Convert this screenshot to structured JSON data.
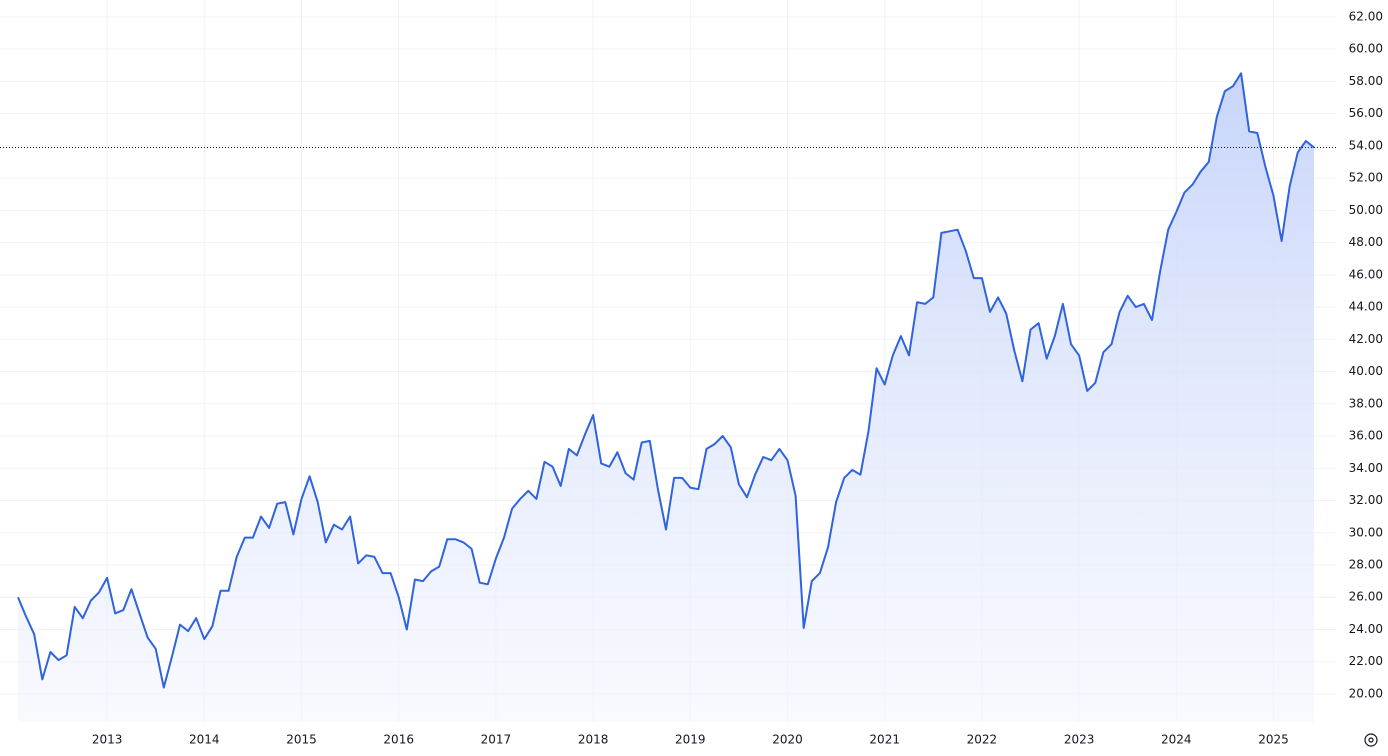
{
  "chart_data": {
    "type": "line",
    "area": true,
    "grid": true,
    "color": "#2f63e0",
    "categories": [
      null,
      null,
      null,
      null,
      null,
      null,
      null,
      null,
      null,
      null,
      null,
      "2013",
      null,
      null,
      null,
      null,
      null,
      null,
      null,
      null,
      null,
      null,
      null,
      "2014",
      null,
      null,
      null,
      null,
      null,
      null,
      null,
      null,
      null,
      null,
      null,
      "2015",
      null,
      null,
      null,
      null,
      null,
      null,
      null,
      null,
      null,
      null,
      null,
      "2016",
      null,
      null,
      null,
      null,
      null,
      null,
      null,
      null,
      null,
      null,
      null,
      "2017",
      null,
      null,
      null,
      null,
      null,
      null,
      null,
      null,
      null,
      null,
      null,
      "2018",
      null,
      null,
      null,
      null,
      null,
      null,
      null,
      null,
      null,
      null,
      null,
      "2019",
      null,
      null,
      null,
      null,
      null,
      null,
      null,
      null,
      null,
      null,
      null,
      "2020",
      null,
      null,
      null,
      null,
      null,
      null,
      null,
      null,
      null,
      null,
      null,
      "2021",
      null,
      null,
      null,
      null,
      null,
      null,
      null,
      null,
      null,
      null,
      null,
      "2022",
      null,
      null,
      null,
      null,
      null,
      null,
      null,
      null,
      null,
      null,
      null,
      "2023",
      null,
      null,
      null,
      null,
      null,
      null,
      null,
      null,
      null,
      null,
      null,
      "2024",
      null,
      null,
      null,
      null,
      null,
      null,
      null,
      null,
      null,
      null,
      null,
      "2025",
      null,
      null,
      null,
      null,
      null
    ],
    "values": [
      26.0,
      24.8,
      23.7,
      20.9,
      22.6,
      22.1,
      22.4,
      25.4,
      24.7,
      25.8,
      26.3,
      27.2,
      25.0,
      25.2,
      26.5,
      25.0,
      23.5,
      22.8,
      20.4,
      22.3,
      24.3,
      23.9,
      24.7,
      23.4,
      24.2,
      26.4,
      26.4,
      28.5,
      29.7,
      29.7,
      31.0,
      30.3,
      31.8,
      31.9,
      29.9,
      32.1,
      33.5,
      31.9,
      29.4,
      30.5,
      30.2,
      31.0,
      28.1,
      28.6,
      28.5,
      27.5,
      27.5,
      26.0,
      24.0,
      27.1,
      27.0,
      27.6,
      27.9,
      29.6,
      29.6,
      29.4,
      29.0,
      26.9,
      26.8,
      28.4,
      29.7,
      31.5,
      32.1,
      32.6,
      32.1,
      34.4,
      34.1,
      32.9,
      35.2,
      34.8,
      36.1,
      37.3,
      34.3,
      34.1,
      35.0,
      33.7,
      33.3,
      35.6,
      35.7,
      32.7,
      30.2,
      33.4,
      33.4,
      32.8,
      32.7,
      35.2,
      35.5,
      36.0,
      35.3,
      33.0,
      32.2,
      33.6,
      34.7,
      34.5,
      35.2,
      34.5,
      32.3,
      24.1,
      27.0,
      27.5,
      29.1,
      31.9,
      33.4,
      33.9,
      33.6,
      36.3,
      40.2,
      39.2,
      41.0,
      42.2,
      41.0,
      44.3,
      44.2,
      44.6,
      48.6,
      48.7,
      48.8,
      47.5,
      45.8,
      45.8,
      43.7,
      44.6,
      43.6,
      41.3,
      39.4,
      42.6,
      43.0,
      40.8,
      42.2,
      44.2,
      41.7,
      41.0,
      38.8,
      39.3,
      41.2,
      41.7,
      43.7,
      44.7,
      44.0,
      44.2,
      43.2,
      46.2,
      48.8,
      49.9,
      51.1,
      51.6,
      52.4,
      53.0,
      55.8,
      57.4,
      57.7,
      58.5,
      54.9,
      54.8,
      52.7,
      50.9,
      48.1,
      51.5,
      53.6,
      54.3,
      53.9
    ],
    "ylim": [
      18.26,
      63.05
    ],
    "yticks": [
      {
        "value": 20,
        "label": "20.00"
      },
      {
        "value": 22,
        "label": "22.00"
      },
      {
        "value": 24,
        "label": "24.00"
      },
      {
        "value": 26,
        "label": "26.00"
      },
      {
        "value": 28,
        "label": "28.00"
      },
      {
        "value": 30,
        "label": "30.00"
      },
      {
        "value": 32,
        "label": "32.00"
      },
      {
        "value": 34,
        "label": "34.00"
      },
      {
        "value": 36,
        "label": "36.00"
      },
      {
        "value": 38,
        "label": "38.00"
      },
      {
        "value": 40,
        "label": "40.00"
      },
      {
        "value": 42,
        "label": "42.00"
      },
      {
        "value": 44,
        "label": "44.00"
      },
      {
        "value": 46,
        "label": "46.00"
      },
      {
        "value": 48,
        "label": "48.00"
      },
      {
        "value": 50,
        "label": "50.00"
      },
      {
        "value": 52,
        "label": "52.00"
      },
      {
        "value": 54,
        "label": "54.00"
      },
      {
        "value": 56,
        "label": "56.00"
      },
      {
        "value": 58,
        "label": "58.00"
      },
      {
        "value": 60,
        "label": "60.00"
      },
      {
        "value": 62,
        "label": "62.00"
      }
    ]
  }
}
